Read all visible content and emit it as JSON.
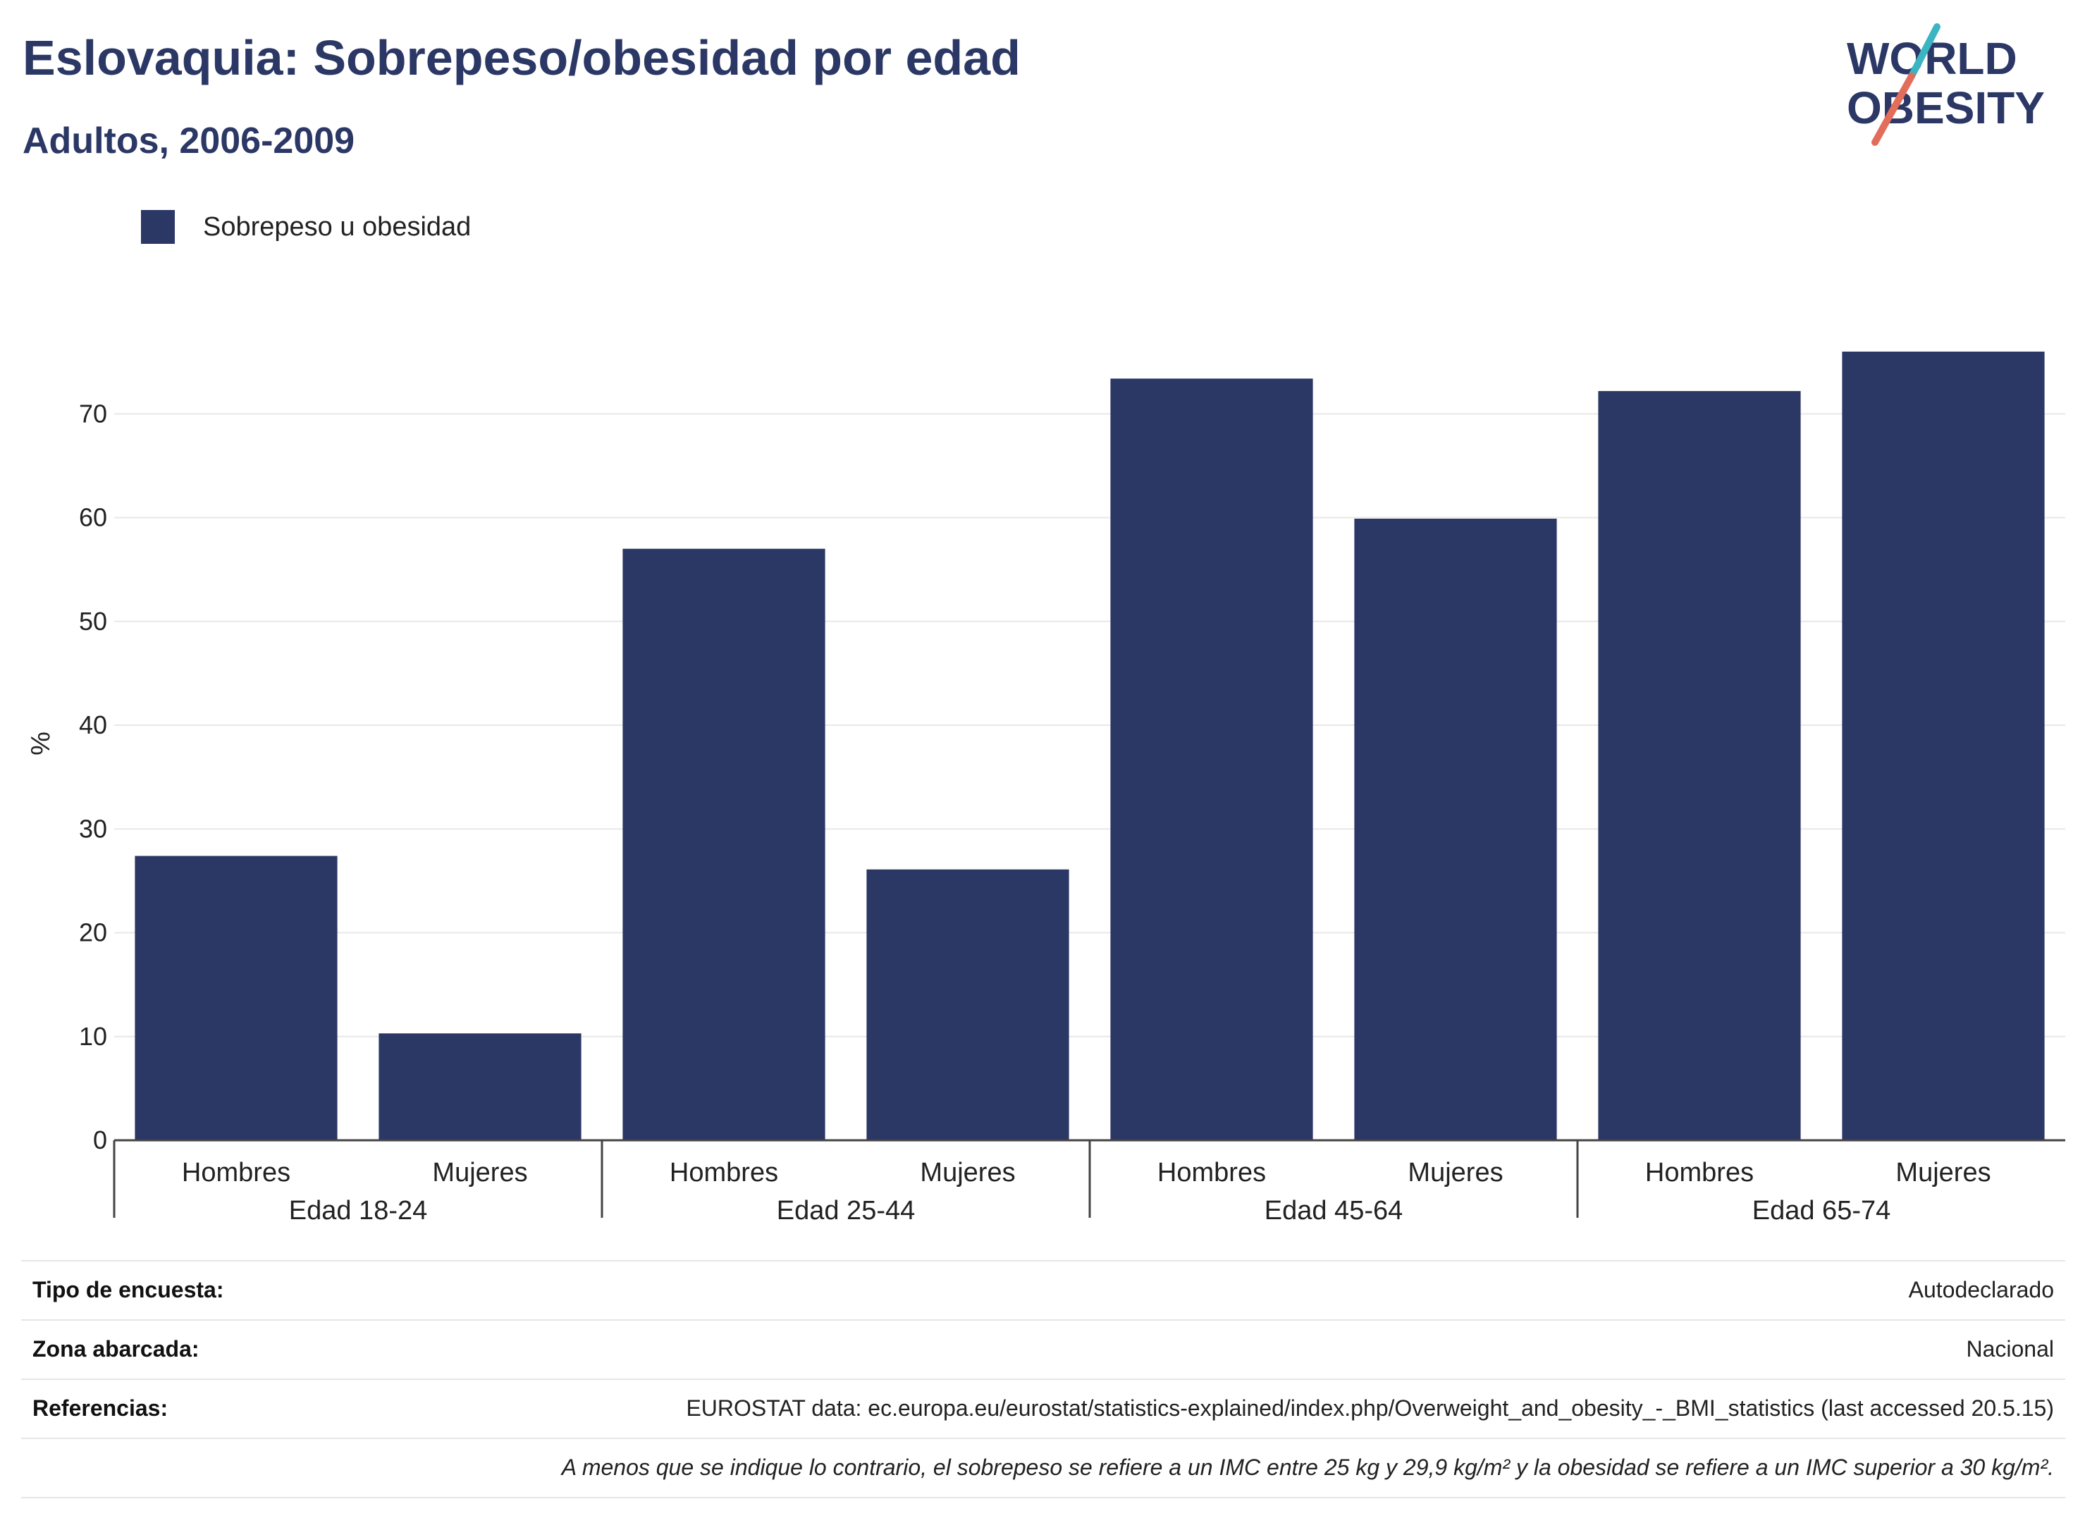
{
  "header": {
    "title": "Eslovaquia: Sobrepeso/obesidad por edad",
    "subtitle": "Adultos, 2006-2009"
  },
  "logo": {
    "line1": "WORLD",
    "line2": "OBESITY",
    "colors": {
      "text": "#2b3765",
      "teal": "#3ab5c1",
      "coral": "#e26d5a"
    }
  },
  "chart_data": {
    "type": "bar",
    "categories": [
      "Hombres",
      "Mujeres",
      "Hombres",
      "Mujeres",
      "Hombres",
      "Mujeres",
      "Hombres",
      "Mujeres"
    ],
    "groups": [
      "Edad 18-24",
      "Edad 25-44",
      "Edad 45-64",
      "Edad 65-74"
    ],
    "series": [
      {
        "name": "Sobrepeso u obesidad",
        "color": "#2b3765",
        "values": [
          27.4,
          10.3,
          57.0,
          26.1,
          73.4,
          59.9,
          72.2,
          76.0
        ]
      }
    ],
    "ylabel": "%",
    "xlabel": "",
    "ylim": [
      0,
      80
    ],
    "yticks": [
      0,
      10,
      20,
      30,
      40,
      50,
      60,
      70
    ],
    "grid": true,
    "legend_position": "top-left"
  },
  "info": {
    "rows": [
      {
        "label": "Tipo de encuesta:",
        "value": "Autodeclarado"
      },
      {
        "label": "Zona abarcada:",
        "value": "Nacional"
      },
      {
        "label": "Referencias:",
        "value": "EUROSTAT data: ec.europa.eu/eurostat/statistics-explained/index.php/Overweight_and_obesity_-_BMI_statistics (last accessed 20.5.15)"
      }
    ],
    "note": "A menos que se indique lo contrario, el sobrepeso se refiere a un IMC entre 25 kg y 29,9 kg/m² y la obesidad se refiere a un IMC superior a 30 kg/m²."
  }
}
